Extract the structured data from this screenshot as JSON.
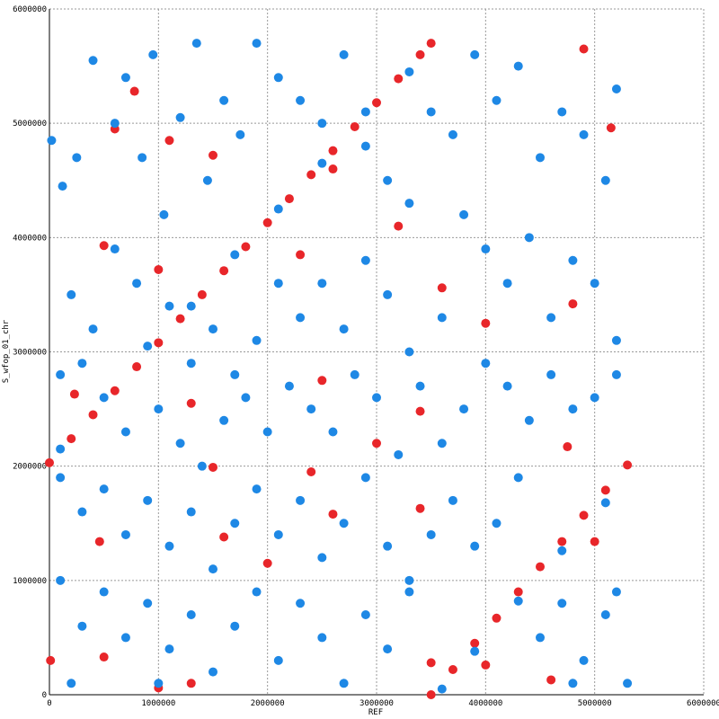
{
  "chart_data": {
    "type": "scatter",
    "xlabel": "REF",
    "ylabel": "S_wfop_01_chr",
    "xlim": [
      0,
      6000000
    ],
    "ylim": [
      0,
      6000000
    ],
    "xticks": [
      0,
      1000000,
      2000000,
      3000000,
      4000000,
      5000000,
      6000000
    ],
    "yticks": [
      0,
      1000000,
      2000000,
      3000000,
      4000000,
      5000000,
      6000000
    ],
    "grid": true,
    "series": [
      {
        "color": "#e8262a",
        "x": [
          0,
          200000,
          400000,
          600000,
          800000,
          1000000,
          1200000,
          1400000,
          1600000,
          1800000,
          2000000,
          2200000,
          2400000,
          2600000,
          2800000,
          3000000,
          3200000,
          3400000,
          3500000,
          3500000,
          3700000,
          3900000,
          4100000,
          4300000,
          4500000,
          4700000,
          4900000,
          5100000,
          5300000,
          780000,
          600000,
          1100000,
          1500000,
          2600000,
          4900000,
          5150000,
          3200000,
          2300000,
          3600000,
          4000000,
          4800000,
          2500000,
          3400000,
          230000,
          500000,
          1000000,
          1300000,
          3000000,
          4750000,
          1600000,
          2000000,
          2400000,
          3400000,
          4000000,
          500000,
          10000,
          1300000,
          1000000,
          5000000,
          4600000,
          2600000,
          3500000,
          460000,
          1500000
        ],
        "y": [
          2030000,
          2240000,
          2450000,
          2660000,
          2870000,
          3080000,
          3290000,
          3500000,
          3710000,
          3920000,
          4130000,
          4340000,
          4550000,
          4760000,
          4970000,
          5180000,
          5390000,
          5600000,
          5700000,
          0,
          220000,
          450000,
          670000,
          900000,
          1120000,
          1340000,
          1570000,
          1790000,
          2010000,
          5280000,
          4950000,
          4850000,
          4720000,
          4600000,
          5650000,
          4960000,
          4100000,
          3850000,
          3560000,
          3250000,
          3420000,
          2750000,
          2480000,
          2630000,
          3930000,
          3720000,
          2550000,
          2200000,
          2170000,
          1380000,
          1150000,
          1950000,
          1630000,
          260000,
          330000,
          300000,
          100000,
          60000,
          1340000,
          130000,
          1580000,
          280000,
          1340000,
          1990000
        ]
      },
      {
        "color": "#1e88e5",
        "x": [
          20000,
          120000,
          250000,
          400000,
          600000,
          700000,
          850000,
          950000,
          1050000,
          1200000,
          1350000,
          1450000,
          1600000,
          1750000,
          1900000,
          2100000,
          2300000,
          2500000,
          2700000,
          2900000,
          3100000,
          3300000,
          3500000,
          3700000,
          3900000,
          4100000,
          4300000,
          4500000,
          4700000,
          4900000,
          5100000,
          5200000,
          3800000,
          4000000,
          4200000,
          4400000,
          4600000,
          4800000,
          5000000,
          5200000,
          3600000,
          3300000,
          3100000,
          2900000,
          2700000,
          2500000,
          2300000,
          2100000,
          1900000,
          1700000,
          1500000,
          1300000,
          1100000,
          800000,
          600000,
          400000,
          200000,
          100000,
          300000,
          700000,
          1000000,
          1200000,
          1400000,
          1600000,
          1800000,
          2000000,
          2200000,
          2400000,
          2600000,
          2800000,
          3000000,
          3200000,
          3400000,
          3600000,
          3800000,
          4000000,
          4200000,
          4400000,
          4600000,
          4800000,
          5000000,
          5200000,
          100000,
          300000,
          500000,
          700000,
          900000,
          1100000,
          1300000,
          1500000,
          1700000,
          1900000,
          2100000,
          2300000,
          2500000,
          2700000,
          2900000,
          3100000,
          3300000,
          3500000,
          3700000,
          3900000,
          4100000,
          4300000,
          100000,
          300000,
          500000,
          700000,
          900000,
          1100000,
          1300000,
          1500000,
          1700000,
          1900000,
          2100000,
          2300000,
          2500000,
          2700000,
          2900000,
          3100000,
          3300000,
          4500000,
          4700000,
          4900000,
          5100000,
          5300000,
          5200000,
          4800000,
          200000,
          1000000,
          100000,
          500000,
          900000,
          1300000,
          1700000,
          2100000,
          2500000,
          2900000,
          3300000,
          3600000,
          3900000,
          4300000,
          4700000,
          5100000
        ],
        "y": [
          4850000,
          4450000,
          4700000,
          5550000,
          5000000,
          5400000,
          4700000,
          5600000,
          4200000,
          5050000,
          5700000,
          4500000,
          5200000,
          4900000,
          5700000,
          5400000,
          5200000,
          5000000,
          5600000,
          4800000,
          4500000,
          4300000,
          5100000,
          4900000,
          5600000,
          5200000,
          5500000,
          4700000,
          5100000,
          4900000,
          4500000,
          5300000,
          4200000,
          3900000,
          3600000,
          4000000,
          3300000,
          3800000,
          3600000,
          3100000,
          3300000,
          3000000,
          3500000,
          3800000,
          3200000,
          3600000,
          3300000,
          3600000,
          3100000,
          2800000,
          3200000,
          2900000,
          3400000,
          3600000,
          3900000,
          3200000,
          3500000,
          2800000,
          2900000,
          2300000,
          2500000,
          2200000,
          2000000,
          2400000,
          2600000,
          2300000,
          2700000,
          2500000,
          2300000,
          2800000,
          2600000,
          2100000,
          2700000,
          2200000,
          2500000,
          2900000,
          2700000,
          2400000,
          2800000,
          2500000,
          2600000,
          2800000,
          1900000,
          1600000,
          1800000,
          1400000,
          1700000,
          1300000,
          1600000,
          1100000,
          1500000,
          1800000,
          1400000,
          1700000,
          1200000,
          1500000,
          1900000,
          1300000,
          1000000,
          1400000,
          1700000,
          1300000,
          1500000,
          1900000,
          1000000,
          600000,
          900000,
          500000,
          800000,
          400000,
          700000,
          200000,
          600000,
          900000,
          300000,
          800000,
          500000,
          100000,
          700000,
          400000,
          900000,
          500000,
          800000,
          300000,
          700000,
          100000,
          900000,
          100000,
          100000,
          100000,
          2150000,
          2600000,
          3050000,
          3400000,
          3850000,
          4250000,
          4650000,
          5100000,
          5450000,
          50000,
          380000,
          820000,
          1260000,
          1680000
        ]
      }
    ]
  }
}
